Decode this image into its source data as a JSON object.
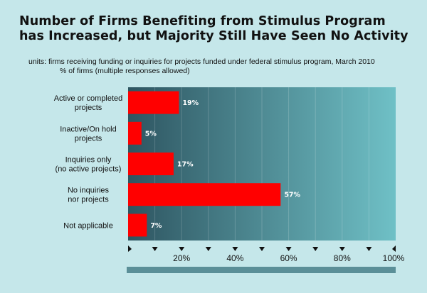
{
  "header": {
    "title_line1": "Number of Firms Benefiting from Stimulus Program",
    "title_line2": "has Increased, but Majority Still Have Seen No Activity",
    "units_line1": "units: firms receiving funding or inquiries for projects funded under federal stimulus program, March 2010",
    "units_line2": "% of firms (multiple responses allowed)"
  },
  "colors": {
    "bar": "#ff0000",
    "background": "#c5e7ea",
    "plot_dark": "#2e5561",
    "plot_light": "#6fc0c6",
    "scrollbar": "#5b8f98"
  },
  "chart_data": {
    "type": "bar",
    "orientation": "horizontal",
    "title": "Number of Firms Benefiting from Stimulus Program has Increased, but Majority Still Have Seen No Activity",
    "xlabel": "% of firms (multiple responses allowed)",
    "ylabel": "",
    "categories": [
      [
        "Active or completed",
        "projects"
      ],
      [
        "Inactive/On hold",
        "projects"
      ],
      [
        "Inquiries only",
        "(no active projects)"
      ],
      [
        "No inquiries",
        "nor projects"
      ],
      [
        "Not applicable"
      ]
    ],
    "values": [
      19,
      5,
      17,
      57,
      7
    ],
    "value_labels": [
      "19%",
      "5%",
      "17%",
      "57%",
      "7%"
    ],
    "xlim": [
      0,
      100
    ],
    "ticks": [
      20,
      40,
      60,
      80,
      100
    ],
    "tick_labels": [
      "20%",
      "40%",
      "60%",
      "80%",
      "100%"
    ],
    "grid": true
  }
}
